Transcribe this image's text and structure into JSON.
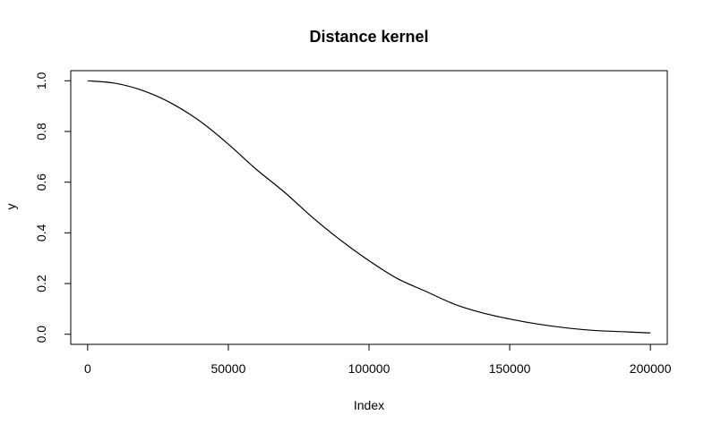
{
  "chart_data": {
    "type": "line",
    "title": "Distance kernel",
    "xlabel": "Index",
    "ylabel": "y",
    "xlim": [
      -6000,
      206000
    ],
    "ylim": [
      -0.04,
      1.04
    ],
    "x_ticks": [
      0,
      50000,
      100000,
      150000,
      200000
    ],
    "x_tick_labels": [
      "0",
      "50000",
      "100000",
      "150000",
      "200000"
    ],
    "y_ticks": [
      0.0,
      0.2,
      0.4,
      0.6,
      0.8,
      1.0
    ],
    "y_tick_labels": [
      "0.0",
      "0.2",
      "0.4",
      "0.6",
      "0.8",
      "1.0"
    ],
    "grid": false,
    "series": [
      {
        "color": "#000000",
        "x": [
          0,
          10000,
          20000,
          30000,
          40000,
          50000,
          60000,
          70000,
          80000,
          90000,
          100000,
          110000,
          120000,
          130000,
          140000,
          150000,
          160000,
          170000,
          180000,
          190000,
          200000
        ],
        "y": [
          1.0,
          0.99,
          0.96,
          0.91,
          0.84,
          0.75,
          0.65,
          0.56,
          0.46,
          0.37,
          0.29,
          0.22,
          0.17,
          0.12,
          0.085,
          0.06,
          0.04,
          0.025,
          0.015,
          0.01,
          0.005
        ]
      }
    ]
  }
}
